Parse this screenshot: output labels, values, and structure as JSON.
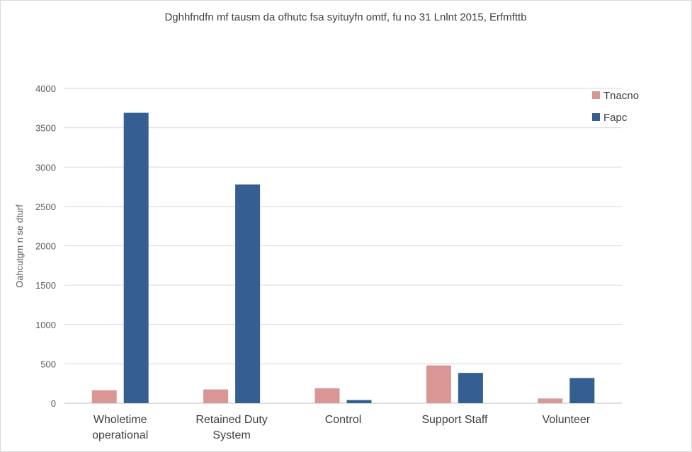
{
  "chart_data": {
    "type": "bar",
    "title": "Dghhfndfn mf tausm da ofhutc fsa syituyfn omtf, fu no 31 Lnlnt 2015, Erfmfttb",
    "xlabel": "",
    "ylabel": "Oahcutgm n se dturf",
    "ylim": [
      0,
      4000
    ],
    "yticks": [
      0,
      500,
      1000,
      1500,
      2000,
      2500,
      3000,
      3500,
      4000
    ],
    "grid": true,
    "legend_position": "top-right",
    "categories": [
      [
        "Wholetime",
        "operational"
      ],
      [
        "Retained Duty",
        "System"
      ],
      [
        "Control"
      ],
      [
        "Support Staff"
      ],
      [
        "Volunteer"
      ]
    ],
    "series": [
      {
        "name": "Tnacno",
        "color": "#d99694",
        "values": [
          165,
          175,
          190,
          480,
          60
        ]
      },
      {
        "name": "Fapc",
        "color": "#355e93",
        "values": [
          3690,
          2780,
          40,
          385,
          320
        ]
      }
    ]
  }
}
